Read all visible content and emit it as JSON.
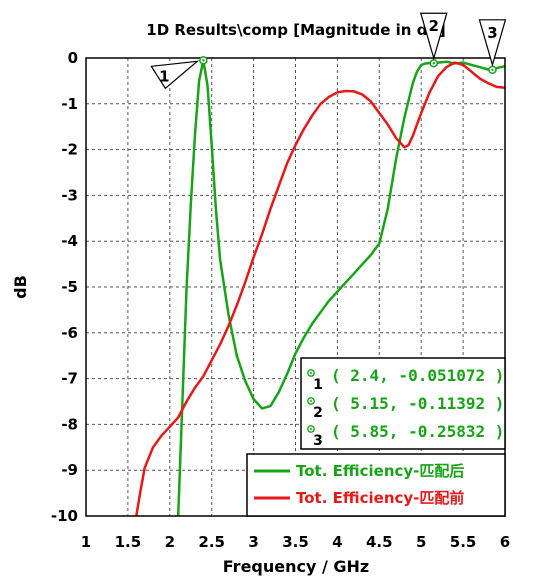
{
  "chart_data": {
    "type": "line",
    "title": "1D Results\\comp [Magnitude in dB]",
    "xlabel": "Frequency / GHz",
    "ylabel": "dB",
    "xlim": [
      1,
      6
    ],
    "ylim": [
      -10,
      0
    ],
    "x_ticks": [
      "1",
      "1.5",
      "2",
      "2.5",
      "3",
      "3.5",
      "4",
      "4.5",
      "5",
      "5.5",
      "6"
    ],
    "y_ticks": [
      "0",
      "-1",
      "-2",
      "-3",
      "-4",
      "-5",
      "-6",
      "-7",
      "-8",
      "-9",
      "-10"
    ],
    "grid": "dashed",
    "legend_position": "bottom-right",
    "series": [
      {
        "name": "Tot. Efficiency-匹配后",
        "color": "#19a319",
        "x": [
          2.1,
          2.15,
          2.2,
          2.25,
          2.3,
          2.35,
          2.4,
          2.45,
          2.5,
          2.55,
          2.6,
          2.7,
          2.8,
          2.9,
          3.0,
          3.1,
          3.2,
          3.3,
          3.4,
          3.5,
          3.6,
          3.7,
          3.8,
          3.9,
          4.0,
          4.1,
          4.2,
          4.3,
          4.4,
          4.5,
          4.6,
          4.7,
          4.8,
          4.9,
          4.95,
          5.0,
          5.05,
          5.1,
          5.15,
          5.2,
          5.3,
          5.4,
          5.5,
          5.6,
          5.7,
          5.8,
          5.85,
          5.9,
          6.0
        ],
        "y": [
          -10.0,
          -7.5,
          -5.0,
          -3.2,
          -1.7,
          -0.5,
          -0.05,
          -0.6,
          -1.9,
          -3.3,
          -4.4,
          -5.6,
          -6.5,
          -7.05,
          -7.45,
          -7.65,
          -7.6,
          -7.3,
          -6.9,
          -6.45,
          -6.1,
          -5.8,
          -5.55,
          -5.3,
          -5.1,
          -4.9,
          -4.7,
          -4.5,
          -4.3,
          -4.05,
          -3.3,
          -2.2,
          -1.3,
          -0.55,
          -0.3,
          -0.15,
          -0.12,
          -0.11,
          -0.11,
          -0.1,
          -0.08,
          -0.12,
          -0.1,
          -0.15,
          -0.2,
          -0.25,
          -0.26,
          -0.22,
          -0.18
        ]
      },
      {
        "name": "Tot. Efficiency-匹配前",
        "color": "#e61919",
        "x": [
          1.6,
          1.65,
          1.7,
          1.8,
          1.9,
          2.0,
          2.1,
          2.2,
          2.3,
          2.4,
          2.5,
          2.6,
          2.7,
          2.8,
          2.9,
          3.0,
          3.1,
          3.2,
          3.3,
          3.4,
          3.5,
          3.6,
          3.7,
          3.8,
          3.9,
          4.0,
          4.1,
          4.2,
          4.3,
          4.4,
          4.5,
          4.6,
          4.7,
          4.8,
          4.85,
          4.9,
          5.0,
          5.1,
          5.2,
          5.3,
          5.4,
          5.5,
          5.6,
          5.7,
          5.8,
          5.9,
          6.0
        ],
        "y": [
          -10.0,
          -9.45,
          -8.95,
          -8.5,
          -8.25,
          -8.05,
          -7.85,
          -7.5,
          -7.2,
          -6.95,
          -6.6,
          -6.25,
          -5.85,
          -5.4,
          -4.9,
          -4.35,
          -3.85,
          -3.3,
          -2.8,
          -2.3,
          -1.9,
          -1.55,
          -1.25,
          -1.0,
          -0.85,
          -0.75,
          -0.72,
          -0.73,
          -0.8,
          -0.95,
          -1.2,
          -1.45,
          -1.75,
          -1.95,
          -1.9,
          -1.7,
          -1.2,
          -0.75,
          -0.4,
          -0.2,
          -0.1,
          -0.15,
          -0.3,
          -0.45,
          -0.55,
          -0.63,
          -0.65
        ]
      }
    ],
    "markers": [
      {
        "id": "1",
        "x": 2.4,
        "y": -0.051072,
        "label": "( 2.4, -0.051072 )"
      },
      {
        "id": "2",
        "x": 5.15,
        "y": -0.11392,
        "label": "( 5.15, -0.11392 )"
      },
      {
        "id": "3",
        "x": 5.85,
        "y": -0.25832,
        "label": "( 5.85, -0.25832 )"
      }
    ]
  }
}
